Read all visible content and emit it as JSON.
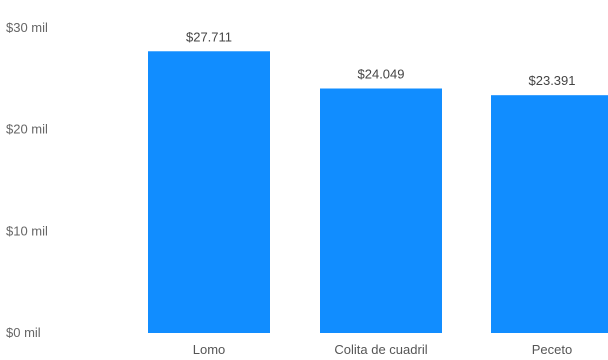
{
  "chart_data": {
    "type": "bar",
    "categories": [
      "Lomo",
      "Colita de cuadril",
      "Peceto"
    ],
    "values": [
      27711,
      24049,
      23391
    ],
    "data_labels": [
      "$27.711",
      "$24.049",
      "$23.391"
    ],
    "y_ticks": [
      {
        "value": 0,
        "label": "$0 mil"
      },
      {
        "value": 10000,
        "label": "$10 mil"
      },
      {
        "value": 20000,
        "label": "$20 mil"
      },
      {
        "value": 30000,
        "label": "$30 mil"
      }
    ],
    "ylim": [
      0,
      30000
    ],
    "grid": false,
    "legend": "none",
    "title": "",
    "xlabel": "",
    "ylabel": "",
    "bar_color": "#118DFF"
  }
}
